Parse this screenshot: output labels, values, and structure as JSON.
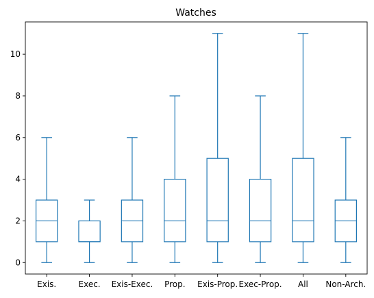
{
  "chart_data": {
    "type": "box",
    "title": "Watches",
    "xlabel": "",
    "ylabel": "",
    "ylim": [
      -0.55,
      11.55
    ],
    "yticks": [
      0,
      2,
      4,
      6,
      8,
      10
    ],
    "grid": false,
    "color": "#1f77b4",
    "categories": [
      "Exis.",
      "Exec.",
      "Exis-Exec.",
      "Prop.",
      "Exis-Prop.",
      "Exec-Prop.",
      "All",
      "Non-Arch."
    ],
    "boxes": [
      {
        "min": 0,
        "q1": 1,
        "median": 2,
        "q3": 3,
        "max": 6
      },
      {
        "min": 0,
        "q1": 1,
        "median": 1,
        "q3": 2,
        "max": 3
      },
      {
        "min": 0,
        "q1": 1,
        "median": 2,
        "q3": 3,
        "max": 6
      },
      {
        "min": 0,
        "q1": 1,
        "median": 2,
        "q3": 4,
        "max": 8
      },
      {
        "min": 0,
        "q1": 1,
        "median": 2,
        "q3": 5,
        "max": 11
      },
      {
        "min": 0,
        "q1": 1,
        "median": 2,
        "q3": 4,
        "max": 8
      },
      {
        "min": 0,
        "q1": 1,
        "median": 2,
        "q3": 5,
        "max": 11
      },
      {
        "min": 0,
        "q1": 1,
        "median": 2,
        "q3": 3,
        "max": 6
      }
    ]
  }
}
